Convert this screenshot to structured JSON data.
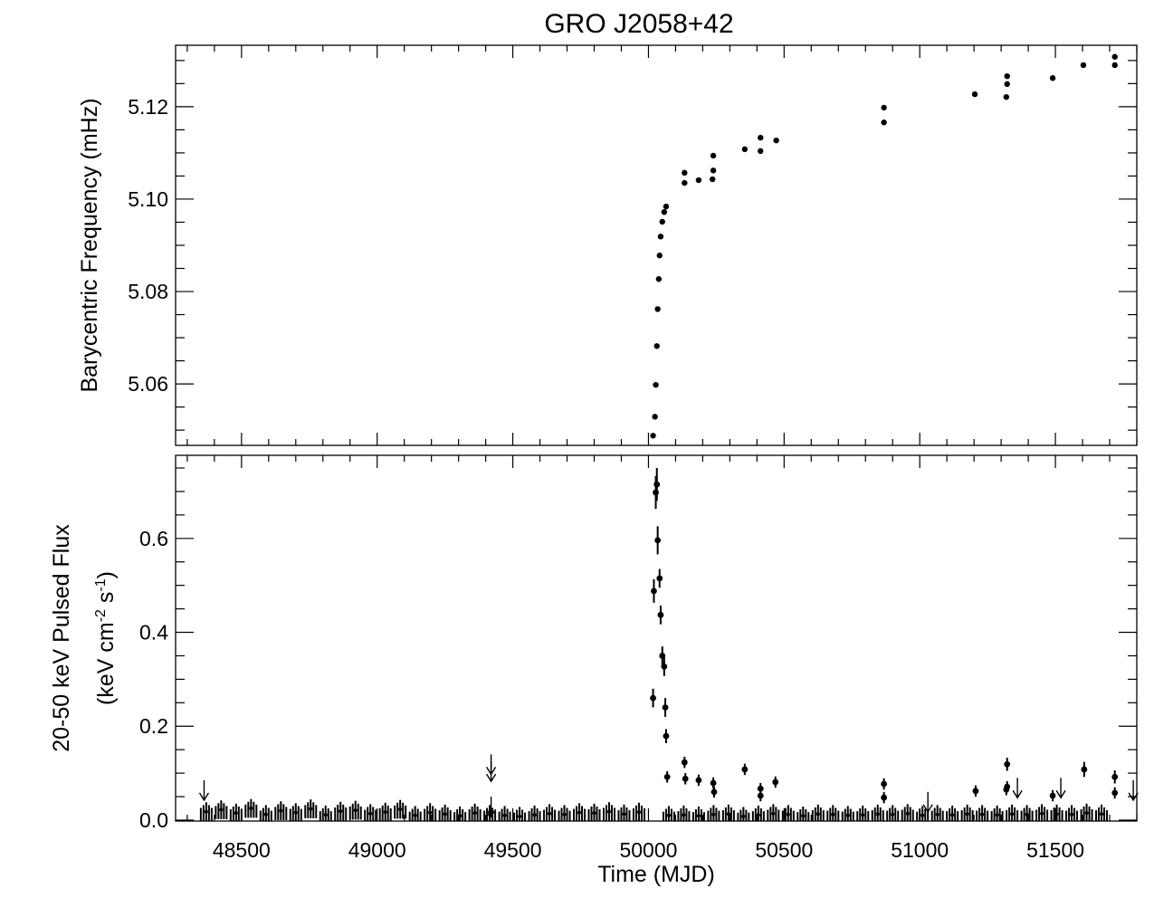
{
  "chart_data": [
    {
      "type": "scatter",
      "title": "GRO J2058+42",
      "xlabel": "",
      "ylabel": "Barycentric Frequency (mHz)",
      "xlim": [
        48257,
        51800
      ],
      "ylim": [
        5.0467,
        5.1333
      ],
      "xticks": [
        48500,
        49000,
        49500,
        50000,
        50500,
        51000,
        51500
      ],
      "yticks": [
        5.06,
        5.08,
        5.1,
        5.12
      ],
      "ytick_labels": [
        "5.06",
        "5.08",
        "5.10",
        "5.12"
      ],
      "grid": false,
      "color": "#000000",
      "x": [
        50017,
        50024,
        50027,
        50031,
        50034,
        50038,
        50041,
        50045,
        50051,
        50058,
        50065,
        50133,
        50133,
        50185,
        50239,
        50239,
        50236,
        50355,
        50413,
        50413,
        50471,
        50868,
        50868,
        51203,
        51322,
        51322,
        51319,
        51490,
        51603,
        51719,
        51719
      ],
      "y": [
        5.0488,
        5.0529,
        5.0598,
        5.0682,
        5.0762,
        5.0827,
        5.0878,
        5.0919,
        5.0951,
        5.0972,
        5.0984,
        5.1057,
        5.1035,
        5.1041,
        5.1094,
        5.1062,
        5.1043,
        5.1108,
        5.1133,
        5.1104,
        5.1127,
        5.1198,
        5.1166,
        5.1227,
        5.1266,
        5.1249,
        5.1221,
        5.1262,
        5.129,
        5.1308,
        5.129
      ]
    },
    {
      "type": "scatter",
      "xlabel": "Time (MJD)",
      "ylabel_line1": "20-50 keV Pulsed Flux",
      "ylabel_line2": {
        "pre": "(keV cm",
        "sup1": "-2",
        "mid": " s",
        "sup2": "-1",
        "post": ")"
      },
      "xlim": [
        48257,
        51800
      ],
      "ylim": [
        -0.002,
        0.777
      ],
      "xticks": [
        48500,
        49000,
        49500,
        50000,
        50500,
        51000,
        51500
      ],
      "xtick_labels": [
        "48500",
        "49000",
        "49500",
        "50000",
        "50500",
        "51000",
        "51500"
      ],
      "yticks": [
        0.0,
        0.2,
        0.4,
        0.6
      ],
      "ytick_labels": [
        "0.0",
        "0.2",
        "0.4",
        "0.6"
      ],
      "grid": false,
      "color": "#000000",
      "detections": {
        "x": [
          50031,
          50027,
          50034,
          50041,
          50020,
          50045,
          50051,
          50058,
          50017,
          50062,
          50065,
          50069,
          50133,
          50136,
          50185,
          50239,
          50242,
          50355,
          50413,
          50413,
          50468,
          50868,
          50868,
          51206,
          51322,
          51322,
          51319,
          51490,
          51606,
          51719,
          51719
        ],
        "y": [
          0.715,
          0.698,
          0.596,
          0.515,
          0.488,
          0.437,
          0.35,
          0.327,
          0.26,
          0.24,
          0.179,
          0.092,
          0.123,
          0.088,
          0.085,
          0.079,
          0.06,
          0.108,
          0.067,
          0.052,
          0.081,
          0.077,
          0.048,
          0.062,
          0.119,
          0.071,
          0.065,
          0.052,
          0.108,
          0.092,
          0.058
        ],
        "err": [
          0.035,
          0.035,
          0.03,
          0.02,
          0.025,
          0.02,
          0.02,
          0.02,
          0.02,
          0.02,
          0.015,
          0.012,
          0.012,
          0.012,
          0.012,
          0.012,
          0.012,
          0.012,
          0.012,
          0.012,
          0.012,
          0.012,
          0.012,
          0.012,
          0.014,
          0.012,
          0.012,
          0.012,
          0.016,
          0.014,
          0.012
        ]
      },
      "baseline": {
        "x": [
          48370,
          48425,
          48480,
          48535,
          48590,
          48645,
          48700,
          48755,
          48810,
          48865,
          48920,
          48975,
          49030,
          49085,
          49140,
          49195,
          49250,
          49305,
          49360,
          49415,
          49470,
          49525,
          49580,
          49635,
          49690,
          49745,
          49800,
          49855,
          49910,
          49965,
          50075,
          50130,
          50185,
          50240,
          50295,
          50350,
          50405,
          50460,
          50515,
          50570,
          50625,
          50680,
          50735,
          50790,
          50845,
          50900,
          50955,
          51010,
          51065,
          51120,
          51175,
          51230,
          51285,
          51340,
          51395,
          51450,
          51505,
          51560,
          51615,
          51670
        ],
        "y": [
          0.018,
          0.022,
          0.015,
          0.025,
          0.012,
          0.02,
          0.016,
          0.024,
          0.011,
          0.019,
          0.021,
          0.014,
          0.017,
          0.023,
          0.01,
          0.016,
          0.013,
          0.009,
          0.015,
          0.012,
          0.01,
          0.008,
          0.011,
          0.014,
          0.012,
          0.016,
          0.015,
          0.018,
          0.013,
          0.017,
          0.01,
          0.011,
          0.009,
          0.012,
          0.013,
          0.008,
          0.011,
          0.014,
          0.012,
          0.009,
          0.013,
          0.012,
          0.01,
          0.011,
          0.013,
          0.012,
          0.014,
          0.01,
          0.012,
          0.011,
          0.013,
          0.012,
          0.011,
          0.013,
          0.012,
          0.014,
          0.013,
          0.012,
          0.015,
          0.013
        ],
        "err": 0.02
      },
      "upper_limits": {
        "x": [
          48362,
          49420,
          49420,
          49420,
          51030,
          51360,
          51520,
          51787
        ],
        "y": [
          0.085,
          0.14,
          0.125,
          0.05,
          0.06,
          0.09,
          0.09,
          0.085
        ]
      }
    }
  ]
}
